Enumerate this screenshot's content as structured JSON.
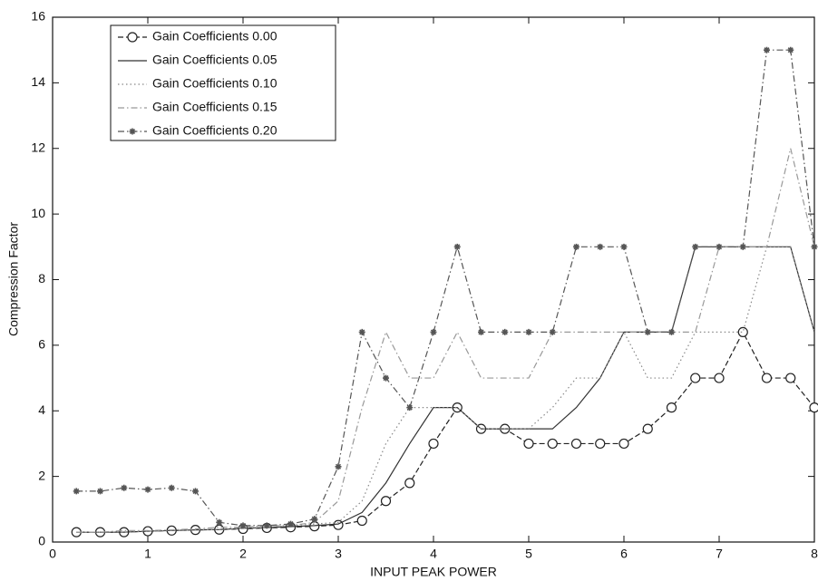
{
  "chart_data": {
    "type": "line",
    "x_label": "INPUT PEAK POWER",
    "y_label": "Compression Factor",
    "x": [
      0.25,
      0.5,
      0.75,
      1,
      1.25,
      1.5,
      1.75,
      2,
      2.25,
      2.5,
      2.75,
      3,
      3.25,
      3.5,
      3.75,
      4,
      4.25,
      4.5,
      4.75,
      5,
      5.25,
      5.5,
      5.75,
      6,
      6.25,
      6.5,
      6.75,
      7,
      7.25,
      7.5,
      7.75,
      8
    ],
    "series": [
      {
        "name": "Gain Coefficients 0.00",
        "color": "#222222",
        "linestyle": "dashed",
        "marker": "circle",
        "values": [
          0.3,
          0.3,
          0.3,
          0.33,
          0.35,
          0.37,
          0.38,
          0.4,
          0.43,
          0.45,
          0.48,
          0.52,
          0.65,
          1.25,
          1.8,
          3.0,
          4.1,
          3.45,
          3.45,
          3.0,
          3.0,
          3.0,
          3.0,
          3.0,
          3.45,
          4.1,
          5.0,
          5.0,
          6.4,
          5.0,
          5.0,
          4.1
        ]
      },
      {
        "name": "Gain Coefficients 0.05",
        "color": "#333333",
        "linestyle": "solid",
        "marker": "none",
        "values": [
          0.3,
          0.3,
          0.3,
          0.33,
          0.35,
          0.37,
          0.38,
          0.42,
          0.44,
          0.47,
          0.5,
          0.55,
          0.9,
          1.8,
          3.0,
          4.1,
          4.1,
          3.45,
          3.45,
          3.45,
          3.45,
          4.1,
          5.0,
          6.4,
          6.4,
          6.4,
          9.0,
          9.0,
          9.0,
          9.0,
          9.0,
          6.4
        ]
      },
      {
        "name": "Gain Coefficients 0.10",
        "color": "#888888",
        "linestyle": "dotted",
        "marker": "none",
        "values": [
          0.3,
          0.3,
          0.3,
          0.33,
          0.35,
          0.37,
          0.38,
          0.42,
          0.45,
          0.5,
          0.55,
          0.6,
          1.25,
          3.0,
          4.1,
          4.1,
          4.1,
          3.45,
          3.45,
          3.45,
          4.1,
          5.0,
          5.0,
          6.4,
          5.0,
          5.0,
          6.4,
          6.4,
          6.4,
          9.0,
          9.0,
          6.4
        ]
      },
      {
        "name": "Gain Coefficients 0.15",
        "color": "#999999",
        "linestyle": "dashdot",
        "marker": "none",
        "values": [
          0.3,
          0.3,
          0.35,
          0.35,
          0.37,
          0.4,
          0.45,
          0.45,
          0.5,
          0.5,
          0.6,
          1.25,
          4.1,
          6.4,
          5.0,
          5.0,
          6.4,
          5.0,
          5.0,
          5.0,
          6.4,
          6.4,
          6.4,
          6.4,
          6.4,
          6.4,
          6.4,
          9.0,
          9.0,
          9.0,
          12.0,
          9.0
        ]
      },
      {
        "name": "Gain Coefficients 0.20",
        "color": "#555555",
        "linestyle": "dashdot",
        "marker": "star",
        "values": [
          1.55,
          1.55,
          1.65,
          1.6,
          1.65,
          1.55,
          0.6,
          0.5,
          0.5,
          0.55,
          0.7,
          2.3,
          6.4,
          5.0,
          4.1,
          6.4,
          9.0,
          6.4,
          6.4,
          6.4,
          6.4,
          9.0,
          9.0,
          9.0,
          6.4,
          6.4,
          9.0,
          9.0,
          9.0,
          15.0,
          15.0,
          9.0
        ]
      }
    ],
    "xlim": [
      0,
      8
    ],
    "xticks": [
      0,
      1,
      2,
      3,
      4,
      5,
      6,
      7,
      8
    ],
    "ylim": [
      0,
      16
    ],
    "yticks": [
      0,
      2,
      4,
      6,
      8,
      10,
      12,
      14,
      16
    ],
    "grid": false,
    "legend": "upper left"
  }
}
